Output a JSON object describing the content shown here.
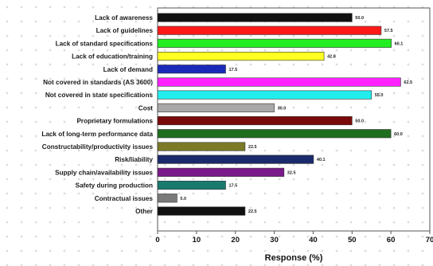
{
  "chart_data": {
    "type": "bar",
    "orientation": "horizontal",
    "title": "",
    "xlabel": "Response (%)",
    "ylabel": "",
    "xlim": [
      0,
      70
    ],
    "x_ticks": [
      0,
      10,
      20,
      30,
      40,
      50,
      60,
      70
    ],
    "x_tick_labels": [
      "0",
      "10",
      "20",
      "30",
      "40",
      "50",
      "60",
      "70"
    ],
    "grid": false,
    "legend": "none",
    "categories": [
      "Lack of awareness",
      "Lack of guidelines",
      "Lack of standard specifications",
      "Lack of education/training",
      "Lack of demand",
      "Not covered in standards (AS 3600)",
      "Not covered in state specifications",
      "Cost",
      "Proprietary formulations",
      "Lack of long-term performance data",
      "Constructability/productivity issues",
      "Risk/liability",
      "Supply chain/availability issues",
      "Safety during production",
      "Contractual issues",
      "Other"
    ],
    "values": [
      50.0,
      57.5,
      60.1,
      42.8,
      17.5,
      62.5,
      55.0,
      30.0,
      50.0,
      60.0,
      22.5,
      40.1,
      32.5,
      17.5,
      5.0,
      22.5
    ],
    "value_labels": [
      "50.0",
      "57.5",
      "60.1",
      "42.8",
      "17.5",
      "62.5",
      "55.0",
      "30.0",
      "50.0",
      "60.0",
      "22.5",
      "40.1",
      "32.5",
      "17.5",
      "5.0",
      "22.5"
    ],
    "colors": [
      "#111111",
      "#ff1a1a",
      "#22ee22",
      "#ffff22",
      "#1a2ab8",
      "#ff22ff",
      "#22eeee",
      "#a8a8a8",
      "#7a0a0a",
      "#1e6e1e",
      "#7a7a28",
      "#1a2a6a",
      "#7a1a8a",
      "#1a7a6e",
      "#7a7a7a",
      "#111111"
    ]
  }
}
